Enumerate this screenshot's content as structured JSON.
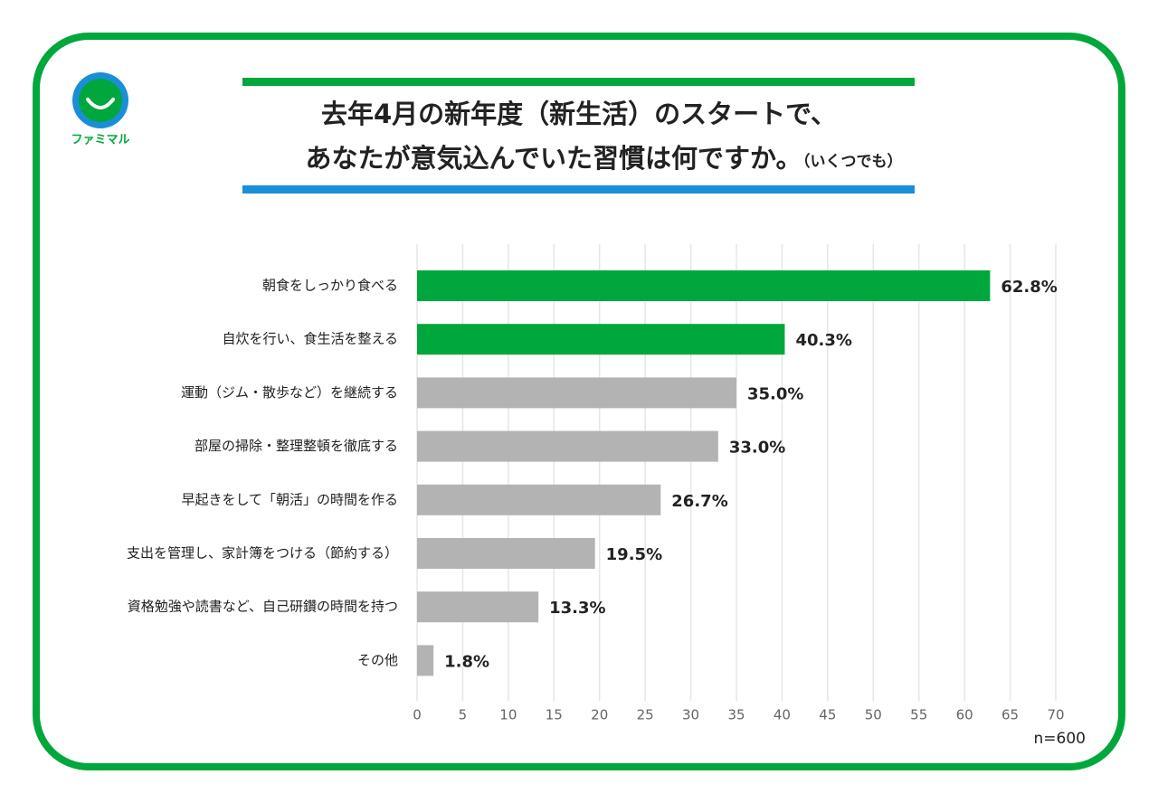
{
  "chart_data": {
    "type": "bar",
    "orientation": "horizontal",
    "logo": "ファミマル",
    "title_lines": [
      "去年4月の新年度（新生活）のスタートで、",
      "あなたが意気込んでいた習慣は何ですか。"
    ],
    "title_suffix": "（いくつでも）",
    "categories": [
      "朝食をしっかり食べる",
      "自炊を行い、食生活を整える",
      "運動（ジム・散歩など）を継続する",
      "部屋の掃除・整理整頓を徹底する",
      "早起きをして「朝活」の時間を作る",
      "支出を管理し、家計簿をつける（節約する）",
      "資格勉強や読書など、自己研鑽の時間を持つ",
      "その他"
    ],
    "values": [
      62.8,
      40.3,
      35.0,
      33.0,
      26.7,
      19.5,
      13.3,
      1.8
    ],
    "value_labels": [
      "62.8%",
      "40.3%",
      "35.0%",
      "33.0%",
      "26.7%",
      "19.5%",
      "13.3%",
      "1.8%"
    ],
    "colors": [
      "#00a73c",
      "#00a73c",
      "#b3b3b3",
      "#b3b3b3",
      "#b3b3b3",
      "#b3b3b3",
      "#b3b3b3",
      "#b3b3b3"
    ],
    "xlim": [
      0,
      70
    ],
    "xticks": [
      0,
      5,
      10,
      15,
      20,
      25,
      30,
      35,
      40,
      45,
      50,
      55,
      60,
      65,
      70
    ],
    "grid": true,
    "note": "n=600"
  }
}
